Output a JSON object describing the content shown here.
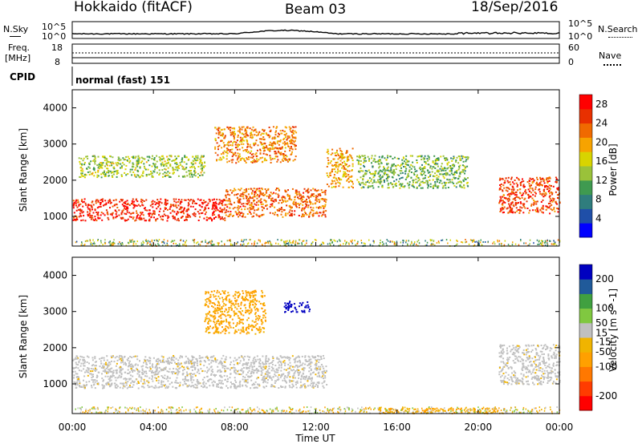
{
  "header": {
    "station": "Hokkaido (fitACF)",
    "beam": "Beam 03",
    "date": "18/Sep/2016"
  },
  "noise_panel": {
    "left_label": "N.Sky",
    "right_label": "N.Search",
    "left_ticks": [
      "10^5",
      "10^0"
    ],
    "right_ticks": [
      "10^5",
      "10^0"
    ]
  },
  "freq_panel": {
    "left_label_1": "Freq.",
    "left_label_2": "[MHz]",
    "right_label": "Nave",
    "left_ticks": [
      "18",
      "8"
    ],
    "right_ticks": [
      "60",
      "0"
    ]
  },
  "cpid_panel": {
    "label": "CPID",
    "mode_text": "normal (fast) 151"
  },
  "colors": {
    "power_scale": [
      "#0000ff",
      "#1f4fa8",
      "#2f7d7d",
      "#3f9a50",
      "#9ac23a",
      "#d8d400",
      "#f7a300",
      "#f06a00",
      "#e83000",
      "#ff0000"
    ],
    "velocity_scale": [
      "#ff0000",
      "#ff3c00",
      "#ff7800",
      "#ffa000",
      "#f0b400",
      "#c0c0c0",
      "#80c840",
      "#40a040",
      "#205a9a",
      "#0000c0"
    ],
    "ground": "#c0c0c0"
  },
  "chart_data": [
    {
      "type": "heatmap",
      "title": "",
      "xlabel": "",
      "ylabel": "Slant Range [km]",
      "x_range": [
        "00:00",
        "24:00"
      ],
      "ylim": [
        180,
        4500
      ],
      "yticks": [
        1000,
        2000,
        3000,
        4000
      ],
      "colorbar_label": "Power [dB]",
      "colorbar_ticks": [
        4,
        8,
        12,
        16,
        20,
        24,
        28
      ],
      "colorbar_range": [
        0,
        30
      ],
      "features": [
        {
          "x_hours": [
            0,
            7.5
          ],
          "range_km": [
            900,
            1500
          ],
          "power_db": 28
        },
        {
          "x_hours": [
            7.5,
            12.5
          ],
          "range_km": [
            1000,
            1800
          ],
          "power_db": 24
        },
        {
          "x_hours": [
            12.5,
            13.8
          ],
          "range_km": [
            1800,
            2900
          ],
          "power_db": 20
        },
        {
          "x_hours": [
            0.3,
            6.5
          ],
          "range_km": [
            2100,
            2700
          ],
          "power_db": 14
        },
        {
          "x_hours": [
            7,
            11
          ],
          "range_km": [
            2500,
            3500
          ],
          "power_db": 22
        },
        {
          "x_hours": [
            21,
            24
          ],
          "range_km": [
            1100,
            2100
          ],
          "power_db": 26
        },
        {
          "x_hours": [
            14,
            19.5
          ],
          "range_km": [
            1800,
            2700
          ],
          "power_db": 12
        }
      ]
    },
    {
      "type": "heatmap",
      "title": "",
      "xlabel": "Time UT",
      "ylabel": "Slant Range [km]",
      "x_ticks": [
        "00:00",
        "04:00",
        "08:00",
        "12:00",
        "16:00",
        "20:00",
        "00:00"
      ],
      "ylim": [
        180,
        4500
      ],
      "yticks": [
        1000,
        2000,
        3000,
        4000
      ],
      "colorbar_label": "Velocity [m s^-1]",
      "colorbar_ticks": [
        200,
        100,
        50,
        15,
        -15,
        -50,
        -100,
        -200
      ],
      "colorbar_range": [
        -250,
        250
      ],
      "features": [
        {
          "x_hours": [
            0,
            12.5
          ],
          "range_km": [
            900,
            1800
          ],
          "velocity": 0,
          "ground_scatter": true
        },
        {
          "x_hours": [
            6.5,
            9.5
          ],
          "range_km": [
            2400,
            3600
          ],
          "velocity": -60
        },
        {
          "x_hours": [
            10.3,
            11.7
          ],
          "range_km": [
            3000,
            3300
          ],
          "velocity": 220
        },
        {
          "x_hours": [
            21,
            24
          ],
          "range_km": [
            1000,
            2100
          ],
          "velocity": 0,
          "ground_scatter": true
        },
        {
          "x_hours": [
            15,
            21
          ],
          "range_km": [
            200,
            350
          ],
          "velocity": -60
        }
      ]
    }
  ]
}
